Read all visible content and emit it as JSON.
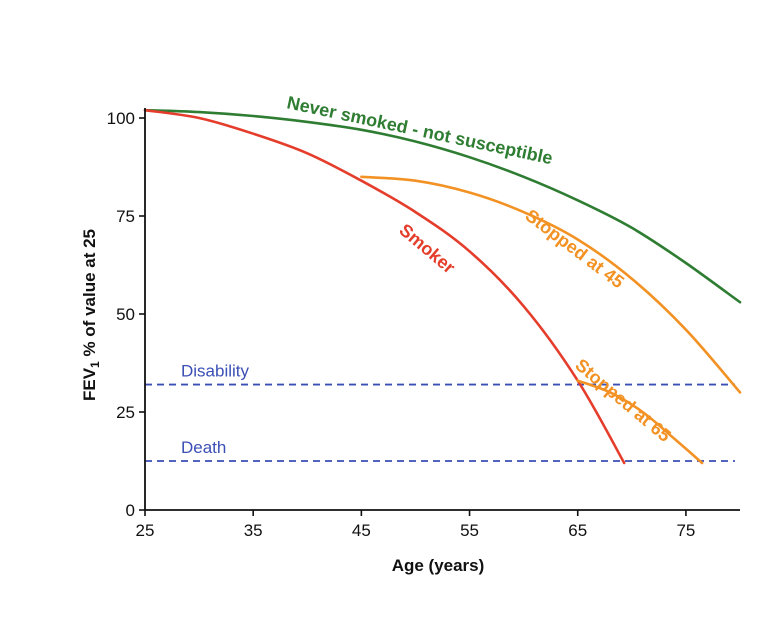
{
  "chart_data": {
    "type": "line",
    "xlabel": "Age (years)",
    "ylabel_main": "FEV",
    "ylabel_sub": "1",
    "ylabel_rest": " % of value at 25",
    "xlim": [
      25,
      80
    ],
    "ylim": [
      0,
      100
    ],
    "xticks": [
      25,
      35,
      45,
      55,
      65,
      75
    ],
    "yticks": [
      0,
      25,
      50,
      75,
      100
    ],
    "grid": false,
    "series": [
      {
        "name": "Never smoked - not susceptible",
        "color": "#2e7d32",
        "x": [
          25,
          30,
          35,
          40,
          45,
          50,
          55,
          60,
          65,
          70,
          75,
          80
        ],
        "y": [
          102,
          101.5,
          100.5,
          99,
          97,
          94,
          90,
          85,
          79,
          72,
          63,
          53
        ]
      },
      {
        "name": "Smoker",
        "color": "#e53d2b",
        "x": [
          25,
          30,
          35,
          40,
          45,
          50,
          55,
          60,
          65,
          69.3
        ],
        "y": [
          102,
          100,
          96,
          91,
          84,
          76,
          66,
          52,
          33,
          12
        ]
      },
      {
        "name": "Stopped at 45",
        "color": "#f39224",
        "x": [
          45,
          50,
          55,
          60,
          65,
          70,
          75,
          80
        ],
        "y": [
          85,
          84,
          81,
          76,
          69,
          59,
          46,
          30
        ]
      },
      {
        "name": "Stopped at 65",
        "color": "#f39224",
        "x": [
          65,
          68,
          71,
          74,
          76.5
        ],
        "y": [
          33,
          30,
          25,
          18,
          12
        ]
      }
    ],
    "reference_lines": [
      {
        "name": "Disability",
        "y": 32,
        "color": "#3b4fb5"
      },
      {
        "name": "Death",
        "y": 12.5,
        "color": "#3b4fb5"
      }
    ]
  }
}
